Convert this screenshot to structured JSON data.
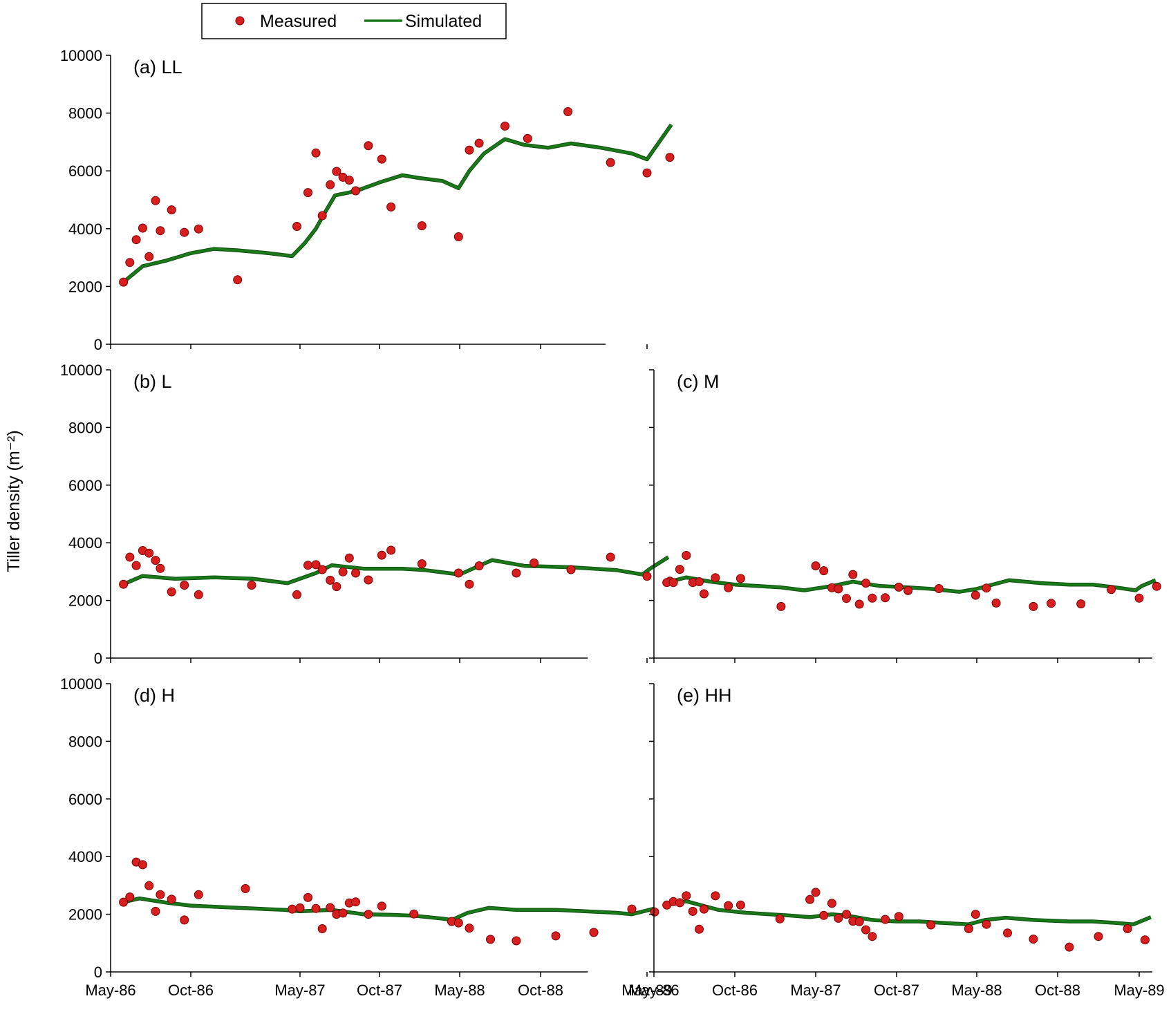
{
  "chart_data": {
    "type": "scatter",
    "ylabel": "Tiller density (m⁻²)",
    "xlim": [
      0,
      37
    ],
    "ylim": [
      0,
      10000
    ],
    "y_ticks": [
      "0",
      "2000",
      "4000",
      "6000",
      "8000",
      "10000"
    ],
    "x_ticks": [
      {
        "label": "May-86",
        "value": 0
      },
      {
        "label": "Oct-86",
        "value": 5
      },
      {
        "label": "May-87",
        "value": 12
      },
      {
        "label": "Oct-87",
        "value": 17
      },
      {
        "label": "May-88",
        "value": 24
      },
      {
        "label": "Oct-88",
        "value": 29
      },
      {
        "label": "May-89",
        "value": 36
      }
    ],
    "legend": {
      "measured_label": "Measured",
      "simulated_label": "Simulated",
      "measured_color": "#d81f1f",
      "simulated_color": "#1a7a1a",
      "position": "top-center"
    },
    "panels": [
      {
        "title": "(a) LL",
        "measured": [
          [
            0.8,
            2150
          ],
          [
            1.2,
            2830
          ],
          [
            1.6,
            3620
          ],
          [
            2.0,
            4020
          ],
          [
            2.4,
            3030
          ],
          [
            2.8,
            4970
          ],
          [
            3.1,
            3930
          ],
          [
            3.8,
            4650
          ],
          [
            4.6,
            3870
          ],
          [
            5.5,
            3990
          ],
          [
            8.0,
            2230
          ],
          [
            11.8,
            4080
          ],
          [
            12.5,
            5250
          ],
          [
            13.0,
            6620
          ],
          [
            13.4,
            4450
          ],
          [
            13.9,
            5520
          ],
          [
            14.3,
            5980
          ],
          [
            14.7,
            5780
          ],
          [
            15.1,
            5680
          ],
          [
            15.5,
            5310
          ],
          [
            16.3,
            6870
          ],
          [
            17.2,
            6410
          ],
          [
            18.0,
            4750
          ],
          [
            20.7,
            4100
          ],
          [
            23.9,
            3720
          ],
          [
            24.6,
            6720
          ],
          [
            25.2,
            6960
          ],
          [
            26.8,
            7550
          ],
          [
            28.2,
            7120
          ],
          [
            30.8,
            8050
          ],
          [
            33.6,
            6290
          ],
          [
            36.0,
            5930
          ],
          [
            37.5,
            6470
          ]
        ],
        "simulated": [
          [
            0.8,
            2150
          ],
          [
            2.0,
            2700
          ],
          [
            3.5,
            2900
          ],
          [
            5.0,
            3150
          ],
          [
            6.5,
            3300
          ],
          [
            8.0,
            3250
          ],
          [
            10.0,
            3150
          ],
          [
            11.5,
            3050
          ],
          [
            12.3,
            3500
          ],
          [
            13.0,
            4000
          ],
          [
            13.4,
            4400
          ],
          [
            14.2,
            5150
          ],
          [
            15.5,
            5300
          ],
          [
            17.0,
            5600
          ],
          [
            19.0,
            5850
          ],
          [
            20.5,
            5750
          ],
          [
            22.5,
            5650
          ],
          [
            23.9,
            5400
          ],
          [
            24.6,
            6000
          ],
          [
            25.5,
            6600
          ],
          [
            26.8,
            7100
          ],
          [
            28.0,
            6900
          ],
          [
            29.5,
            6800
          ],
          [
            31.0,
            6950
          ],
          [
            33.0,
            6800
          ],
          [
            35.0,
            6600
          ],
          [
            36.0,
            6400
          ],
          [
            36.8,
            7000
          ],
          [
            37.6,
            7600
          ]
        ]
      },
      {
        "title": "(b) L",
        "measured": [
          [
            0.8,
            2560
          ],
          [
            1.2,
            3500
          ],
          [
            1.6,
            3210
          ],
          [
            2.0,
            3730
          ],
          [
            2.4,
            3640
          ],
          [
            2.8,
            3390
          ],
          [
            3.1,
            3110
          ],
          [
            3.8,
            2300
          ],
          [
            4.6,
            2530
          ],
          [
            5.5,
            2200
          ],
          [
            8.9,
            2530
          ],
          [
            11.8,
            2200
          ],
          [
            12.5,
            3220
          ],
          [
            13.0,
            3240
          ],
          [
            13.4,
            3070
          ],
          [
            13.9,
            2700
          ],
          [
            14.3,
            2480
          ],
          [
            14.7,
            2990
          ],
          [
            15.1,
            3470
          ],
          [
            15.5,
            2950
          ],
          [
            16.3,
            2710
          ],
          [
            17.2,
            3570
          ],
          [
            18.0,
            3740
          ],
          [
            20.7,
            3270
          ],
          [
            23.9,
            2950
          ],
          [
            24.6,
            2560
          ],
          [
            25.2,
            3200
          ],
          [
            27.5,
            2950
          ],
          [
            28.6,
            3300
          ],
          [
            31.0,
            3070
          ],
          [
            33.6,
            3500
          ],
          [
            36.0,
            2840
          ],
          [
            37.5,
            2670
          ]
        ],
        "simulated": [
          [
            0.8,
            2560
          ],
          [
            2.0,
            2850
          ],
          [
            4.0,
            2750
          ],
          [
            6.5,
            2800
          ],
          [
            9.0,
            2750
          ],
          [
            11.2,
            2600
          ],
          [
            13.0,
            2950
          ],
          [
            14.0,
            3220
          ],
          [
            16.0,
            3100
          ],
          [
            19.0,
            3100
          ],
          [
            21.0,
            3050
          ],
          [
            24.0,
            2900
          ],
          [
            26.0,
            3400
          ],
          [
            28.0,
            3200
          ],
          [
            31.0,
            3150
          ],
          [
            34.0,
            3050
          ],
          [
            35.7,
            2900
          ],
          [
            36.2,
            3100
          ],
          [
            37.4,
            3500
          ]
        ]
      },
      {
        "title": "(c) M",
        "measured": [
          [
            0.8,
            2620
          ],
          [
            1.2,
            2620
          ],
          [
            1.6,
            3080
          ],
          [
            2.0,
            3560
          ],
          [
            2.4,
            2620
          ],
          [
            2.8,
            2650
          ],
          [
            3.1,
            2230
          ],
          [
            3.8,
            2790
          ],
          [
            4.6,
            2440
          ],
          [
            5.5,
            2760
          ],
          [
            9.0,
            1790
          ],
          [
            12.0,
            3200
          ],
          [
            12.5,
            3030
          ],
          [
            13.0,
            2440
          ],
          [
            13.4,
            2400
          ],
          [
            13.9,
            2070
          ],
          [
            14.3,
            2900
          ],
          [
            14.7,
            1870
          ],
          [
            15.1,
            2600
          ],
          [
            15.5,
            2080
          ],
          [
            16.3,
            2090
          ],
          [
            17.2,
            2460
          ],
          [
            18.0,
            2340
          ],
          [
            20.7,
            2410
          ],
          [
            23.9,
            2180
          ],
          [
            24.6,
            2430
          ],
          [
            25.2,
            1910
          ],
          [
            27.5,
            1790
          ],
          [
            28.6,
            1900
          ],
          [
            31.0,
            1880
          ],
          [
            33.6,
            2380
          ],
          [
            36.0,
            2080
          ],
          [
            37.5,
            2490
          ]
        ],
        "simulated": [
          [
            0.8,
            2620
          ],
          [
            2.0,
            2800
          ],
          [
            3.5,
            2650
          ],
          [
            5.0,
            2550
          ],
          [
            7.0,
            2500
          ],
          [
            9.0,
            2450
          ],
          [
            11.0,
            2350
          ],
          [
            13.0,
            2500
          ],
          [
            14.3,
            2650
          ],
          [
            16.0,
            2500
          ],
          [
            18.0,
            2450
          ],
          [
            20.0,
            2400
          ],
          [
            22.5,
            2300
          ],
          [
            24.0,
            2400
          ],
          [
            26.0,
            2700
          ],
          [
            28.0,
            2600
          ],
          [
            30.0,
            2550
          ],
          [
            32.0,
            2550
          ],
          [
            34.0,
            2450
          ],
          [
            35.7,
            2350
          ],
          [
            36.2,
            2500
          ],
          [
            37.4,
            2700
          ]
        ]
      },
      {
        "title": "(d) H",
        "measured": [
          [
            0.8,
            2420
          ],
          [
            1.2,
            2600
          ],
          [
            1.6,
            3810
          ],
          [
            2.0,
            3720
          ],
          [
            2.4,
            2990
          ],
          [
            2.8,
            2100
          ],
          [
            3.1,
            2680
          ],
          [
            3.8,
            2520
          ],
          [
            4.6,
            1800
          ],
          [
            5.5,
            2680
          ],
          [
            8.5,
            2890
          ],
          [
            11.5,
            2180
          ],
          [
            12.0,
            2220
          ],
          [
            12.5,
            2580
          ],
          [
            13.0,
            2200
          ],
          [
            13.4,
            1500
          ],
          [
            13.9,
            2230
          ],
          [
            14.3,
            2000
          ],
          [
            14.7,
            2040
          ],
          [
            15.1,
            2390
          ],
          [
            15.5,
            2430
          ],
          [
            16.3,
            2000
          ],
          [
            17.2,
            2280
          ],
          [
            20.0,
            2010
          ],
          [
            23.3,
            1750
          ],
          [
            23.9,
            1700
          ],
          [
            24.6,
            1520
          ],
          [
            25.9,
            1130
          ],
          [
            27.5,
            1080
          ],
          [
            30.0,
            1250
          ],
          [
            32.5,
            1370
          ],
          [
            35.0,
            2180
          ],
          [
            36.5,
            2080
          ]
        ],
        "simulated": [
          [
            0.8,
            2420
          ],
          [
            1.8,
            2550
          ],
          [
            3.5,
            2400
          ],
          [
            5.0,
            2300
          ],
          [
            7.0,
            2250
          ],
          [
            9.0,
            2200
          ],
          [
            11.0,
            2150
          ],
          [
            12.0,
            2100
          ],
          [
            14.0,
            2150
          ],
          [
            16.0,
            2000
          ],
          [
            18.0,
            1980
          ],
          [
            20.0,
            1950
          ],
          [
            22.5,
            1850
          ],
          [
            23.3,
            1800
          ],
          [
            24.5,
            2050
          ],
          [
            25.8,
            2220
          ],
          [
            27.5,
            2150
          ],
          [
            30.0,
            2150
          ],
          [
            32.0,
            2100
          ],
          [
            34.0,
            2050
          ],
          [
            35.0,
            2000
          ],
          [
            36.5,
            2200
          ]
        ]
      },
      {
        "title": "(e) HH",
        "measured": [
          [
            0.8,
            2320
          ],
          [
            1.2,
            2440
          ],
          [
            1.6,
            2400
          ],
          [
            2.0,
            2640
          ],
          [
            2.4,
            2100
          ],
          [
            2.8,
            1480
          ],
          [
            3.1,
            2180
          ],
          [
            3.8,
            2640
          ],
          [
            4.6,
            2300
          ],
          [
            5.5,
            2320
          ],
          [
            8.9,
            1840
          ],
          [
            11.5,
            2510
          ],
          [
            12.0,
            2760
          ],
          [
            12.5,
            1960
          ],
          [
            13.0,
            2380
          ],
          [
            13.4,
            1860
          ],
          [
            13.9,
            2000
          ],
          [
            14.3,
            1760
          ],
          [
            14.7,
            1740
          ],
          [
            15.1,
            1460
          ],
          [
            15.5,
            1230
          ],
          [
            16.3,
            1820
          ],
          [
            17.2,
            1920
          ],
          [
            20.0,
            1630
          ],
          [
            23.3,
            1500
          ],
          [
            23.9,
            2000
          ],
          [
            24.6,
            1650
          ],
          [
            25.9,
            1350
          ],
          [
            27.5,
            1140
          ],
          [
            30.0,
            860
          ],
          [
            32.5,
            1230
          ],
          [
            35.0,
            1500
          ],
          [
            36.5,
            1110
          ]
        ],
        "simulated": [
          [
            0.8,
            2320
          ],
          [
            2.0,
            2450
          ],
          [
            4.0,
            2150
          ],
          [
            6.0,
            2050
          ],
          [
            8.0,
            2000
          ],
          [
            10.0,
            1950
          ],
          [
            11.5,
            1900
          ],
          [
            13.0,
            2000
          ],
          [
            14.0,
            1950
          ],
          [
            15.5,
            1800
          ],
          [
            17.0,
            1750
          ],
          [
            19.0,
            1750
          ],
          [
            21.0,
            1700
          ],
          [
            23.3,
            1650
          ],
          [
            24.5,
            1800
          ],
          [
            25.8,
            1880
          ],
          [
            27.5,
            1800
          ],
          [
            30.0,
            1750
          ],
          [
            32.0,
            1750
          ],
          [
            34.0,
            1700
          ],
          [
            35.5,
            1650
          ],
          [
            37.0,
            1900
          ]
        ]
      }
    ]
  }
}
